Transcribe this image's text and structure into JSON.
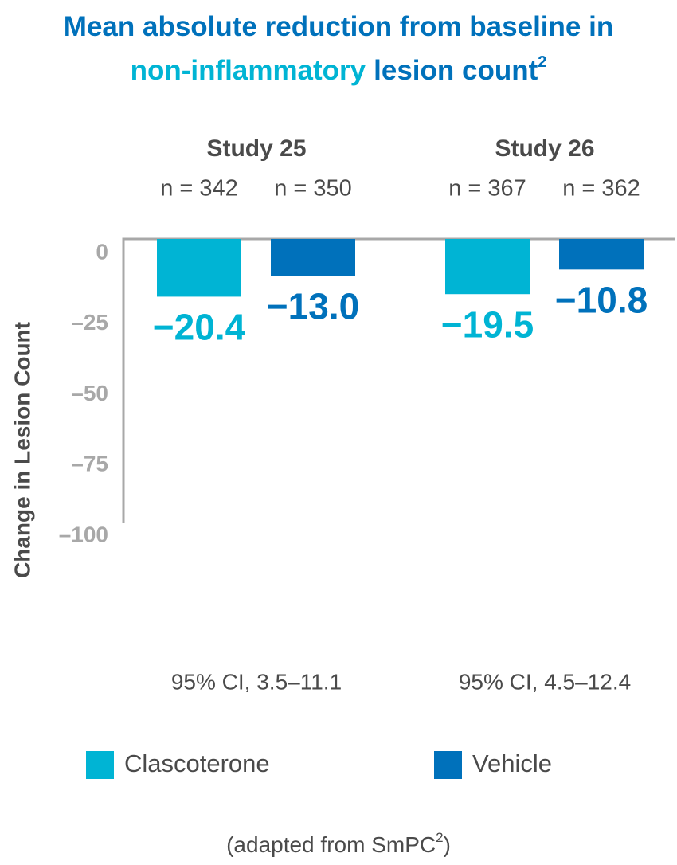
{
  "chart_data": {
    "type": "bar",
    "title": {
      "line1": "Mean absolute reduction from baseline in",
      "highlight": "non-inflammatory",
      "rest": "lesion count",
      "superscript": "2"
    },
    "categories": [
      "Study 25",
      "Study 26"
    ],
    "series": [
      {
        "name": "Clascoterone",
        "color": "#00b4d4",
        "values": [
          -20.4,
          -19.5
        ],
        "value_labels": [
          "−20.4",
          "−19.5"
        ],
        "n_labels": [
          "n = 342",
          "n = 367"
        ]
      },
      {
        "name": "Vehicle",
        "color": "#0071bb",
        "values": [
          -13.0,
          -10.8
        ],
        "value_labels": [
          "−13.0",
          "−10.8"
        ],
        "n_labels": [
          "n = 350",
          "n = 362"
        ]
      }
    ],
    "ci_labels": [
      "95% CI, 3.5–11.1",
      "95% CI, 4.5–12.4"
    ],
    "y_label": "Change in Lesion Count",
    "ylim": [
      -100,
      0
    ],
    "yticks": [
      0,
      {
        "value": -25,
        "label": "–25"
      },
      {
        "value": -50,
        "label": "–50"
      },
      {
        "value": -75,
        "label": "–75"
      },
      {
        "value": -100,
        "label": "–100"
      }
    ],
    "grid": false,
    "footnote": {
      "text": "(adapted from SmPC",
      "superscript": "2",
      "close": ")"
    }
  }
}
